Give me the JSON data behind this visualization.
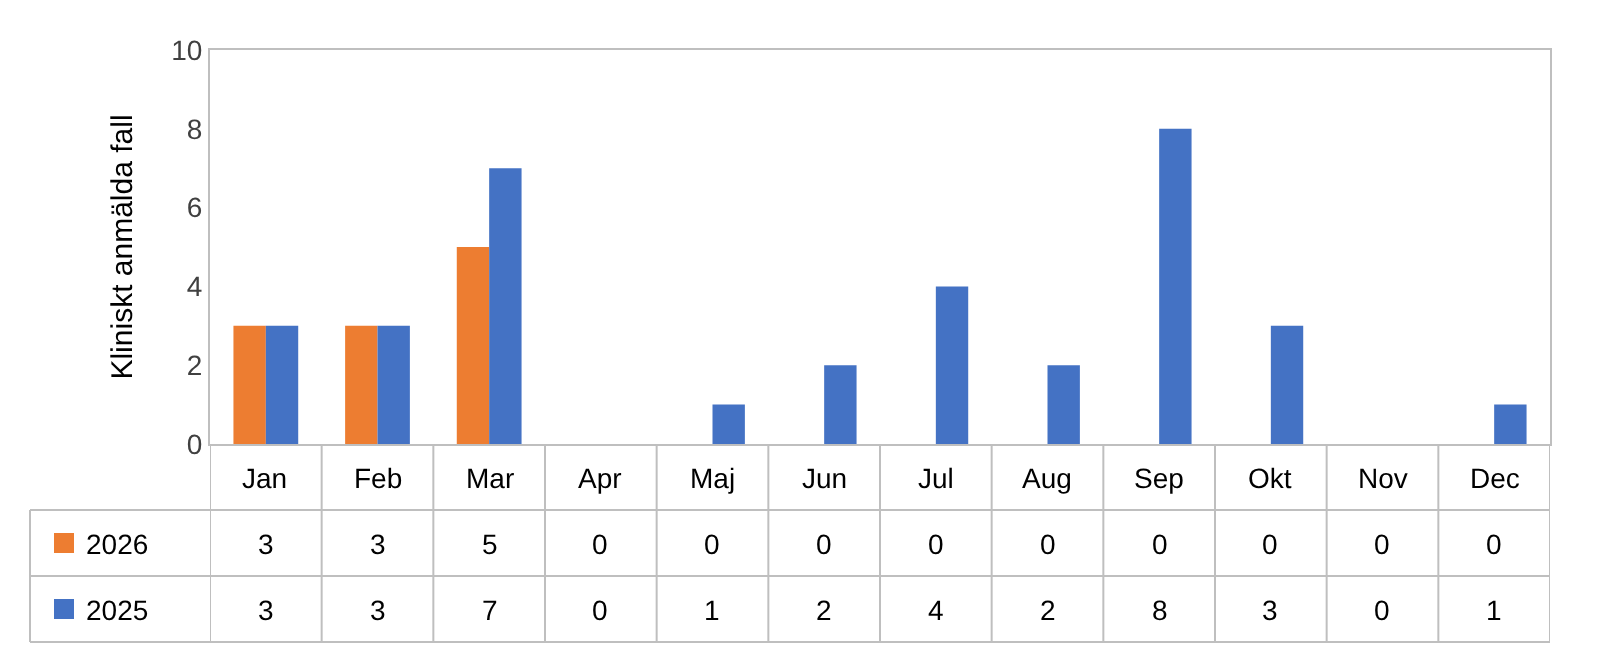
{
  "chart_data": {
    "type": "bar",
    "ylabel": "Kliniskt anmälda fall",
    "categories": [
      "Jan",
      "Feb",
      "Mar",
      "Apr",
      "Maj",
      "Jun",
      "Jul",
      "Aug",
      "Sep",
      "Okt",
      "Nov",
      "Dec"
    ],
    "series": [
      {
        "name": "2026",
        "color": "#ed7d31",
        "values": [
          3,
          3,
          5,
          0,
          0,
          0,
          0,
          0,
          0,
          0,
          0,
          0
        ]
      },
      {
        "name": "2025",
        "color": "#4472c4",
        "values": [
          3,
          3,
          7,
          0,
          1,
          2,
          4,
          2,
          8,
          3,
          0,
          1
        ]
      }
    ],
    "ylim": [
      0,
      10
    ],
    "yticks": [
      0,
      2,
      4,
      6,
      8,
      10
    ],
    "legend": "bottom",
    "data_labels": true
  }
}
